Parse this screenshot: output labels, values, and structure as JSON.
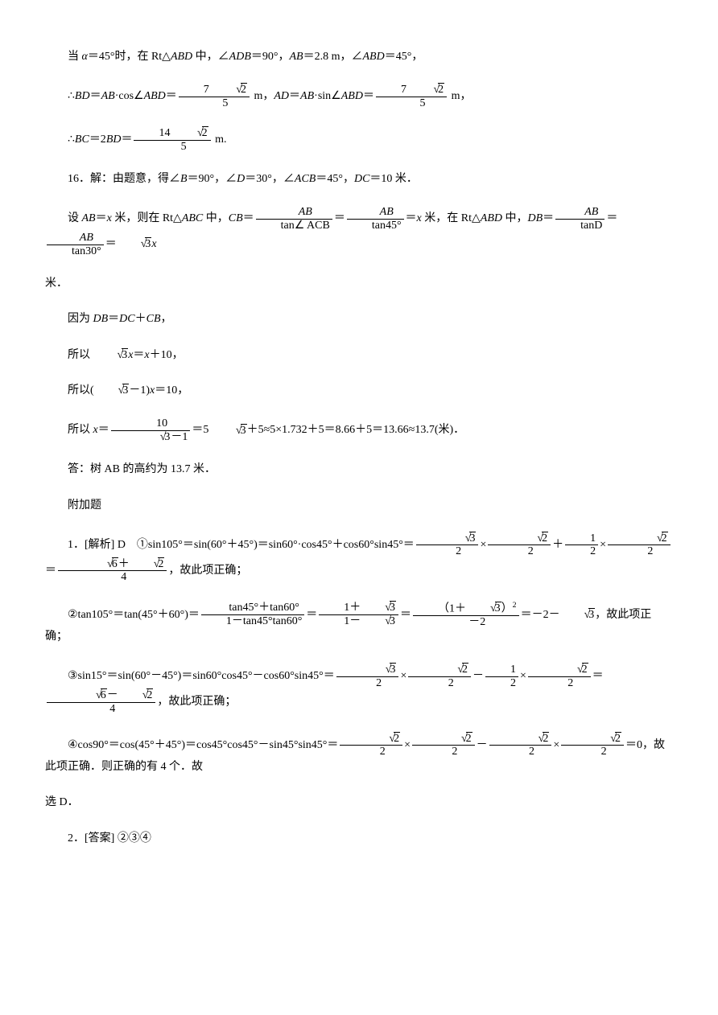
{
  "p1_a": "当 ",
  "p1_b": "α",
  "p1_c": "＝45°时，在 Rt△",
  "p1_d": "ABD",
  "p1_e": " 中，∠",
  "p1_f": "ADB",
  "p1_g": "＝90°，",
  "p1_h": "AB",
  "p1_i": "＝2.8 m，∠",
  "p1_j": "ABD",
  "p1_k": "＝45°，",
  "p2_a": "∴",
  "p2_b": "BD",
  "p2_c": "＝",
  "p2_d": "AB",
  "p2_e": "·cos∠",
  "p2_f": "ABD",
  "p2_g": "＝",
  "p2_num1_a": "7 ",
  "p2_num1_b": "2",
  "p2_den1": "5",
  "p2_h": " m，",
  "p2_i": "AD",
  "p2_j": "＝",
  "p2_k": "AB",
  "p2_l": "·sin∠",
  "p2_m": "ABD",
  "p2_n": "＝",
  "p2_num2_a": "7 ",
  "p2_num2_b": "2",
  "p2_den2": "5",
  "p2_o": " m，",
  "p3_a": "∴",
  "p3_b": "BC",
  "p3_c": "＝2",
  "p3_d": "BD",
  "p3_e": "＝",
  "p3_num_a": "14 ",
  "p3_num_b": "2",
  "p3_den": "5",
  "p3_f": " m.",
  "p4_a": "16．解：由题意，得∠",
  "p4_b": "B",
  "p4_c": "＝90°，∠",
  "p4_d": "D",
  "p4_e": "＝30°，∠",
  "p4_f": "ACB",
  "p4_g": "＝45°，",
  "p4_h": "DC",
  "p4_i": "＝10 米．",
  "p5_a": "设 ",
  "p5_b": "AB",
  "p5_c": "＝",
  "p5_d": "x",
  "p5_e": " 米，则在 Rt△",
  "p5_f": "ABC",
  "p5_g": " 中，",
  "p5_h": "CB",
  "p5_i": "＝",
  "p5_f1n": "AB",
  "p5_f1d": "tan∠ ACB",
  "p5_j": "＝",
  "p5_f2n": "AB",
  "p5_f2d": "tan45°",
  "p5_k": "＝",
  "p5_l": "x",
  "p5_m": " 米，在 Rt△",
  "p5_n": "ABD",
  "p5_o": " 中，",
  "p5_p": "DB",
  "p5_q": "＝",
  "p5_f3n": "AB",
  "p5_f3d": "tanD",
  "p5_r": "＝",
  "p5_f4n": "AB",
  "p5_f4d": "tan30°",
  "p5_s": "＝",
  "p5_sq": "3",
  "p5_t": "x",
  "p5_end": "米．",
  "p6_a": "因为 ",
  "p6_b": "DB",
  "p6_c": "＝",
  "p6_d": "DC",
  "p6_e": "＋",
  "p6_f": "CB",
  "p6_g": "，",
  "p7_a": "所以 ",
  "p7_sq": "3",
  "p7_b": "x",
  "p7_c": "＝",
  "p7_d": "x",
  "p7_e": "＋10，",
  "p8_a": "所以(",
  "p8_sq": "3",
  "p8_b": "－1)",
  "p8_c": "x",
  "p8_d": "＝10，",
  "p9_a": "所以 ",
  "p9_b": "x",
  "p9_c": "＝",
  "p9_num": "10",
  "p9_den_sq": "3",
  "p9_den_b": "－1",
  "p9_d": "＝5  ",
  "p9_sq2": "3",
  "p9_e": "＋5≈5×1.732＋5＝8.66＋5＝13.66≈13.7(米)．",
  "p10": "答：树 AB 的高约为 13.7 米．",
  "p11": "附加题",
  "p12_a": "1．[解析] D　①sin105°＝sin(60°＋45°)＝sin60°·cos45°＋cos60°sin45°＝",
  "p12_f1n": "3",
  "p12_f1d": "2",
  "p12_b": "×",
  "p12_f2n": "2",
  "p12_f2d": "2",
  "p12_c": "＋",
  "p12_f3n": "1",
  "p12_f3d": "2",
  "p12_d": "×",
  "p12_f4n": "2",
  "p12_f4d": "2",
  "p12_e": "＝",
  "p12_f5n_a": "6",
  "p12_f5n_b": "＋",
  "p12_f5n_c": "2",
  "p12_f5d": "4",
  "p12_f": "，故此项正确；",
  "p13_a": "②tan105°＝tan(45°＋60°)＝",
  "p13_f1n": "tan45°＋tan60°",
  "p13_f1d": "1－tan45°tan60°",
  "p13_b": "＝",
  "p13_f2n_a": "1＋",
  "p13_f2n_b": "3",
  "p13_f2d_a": "1－",
  "p13_f2d_b": "3",
  "p13_c": "＝",
  "p13_f3n_a": "（1＋",
  "p13_f3n_b": "3",
  "p13_f3n_c": "）",
  "p13_f3n_d": "2",
  "p13_f3d": "－2",
  "p13_d": "＝－2－",
  "p13_sq": "3",
  "p13_e": "，故此项正确；",
  "p14_a": "③sin15°＝sin(60°－45°)＝sin60°cos45°－cos60°sin45°＝",
  "p14_f1n": "3",
  "p14_f1d": "2",
  "p14_b": "×",
  "p14_f2n": "2",
  "p14_f2d": "2",
  "p14_c": "－",
  "p14_f3n": "1",
  "p14_f3d": "2",
  "p14_d": "×",
  "p14_f4n": "2",
  "p14_f4d": "2",
  "p14_e": "＝",
  "p14_f5n_a": "6",
  "p14_f5n_b": "－",
  "p14_f5n_c": "2",
  "p14_f5d": "4",
  "p14_f": "，故此项正确；",
  "p15_a": "④cos90°＝cos(45°＋45°)＝cos45°cos45°－sin45°sin45°＝",
  "p15_f1n": "2",
  "p15_f1d": "2",
  "p15_b": "×",
  "p15_f2n": "2",
  "p15_f2d": "2",
  "p15_c": "－",
  "p15_f3n": "2",
  "p15_f3d": "2",
  "p15_d": "×",
  "p15_f4n": "2",
  "p15_f4d": "2",
  "p15_e": "＝0，故此项正确．则正确的有 4 个．故",
  "p15_end": "选 D．",
  "p16": "2．[答案] ②③④"
}
